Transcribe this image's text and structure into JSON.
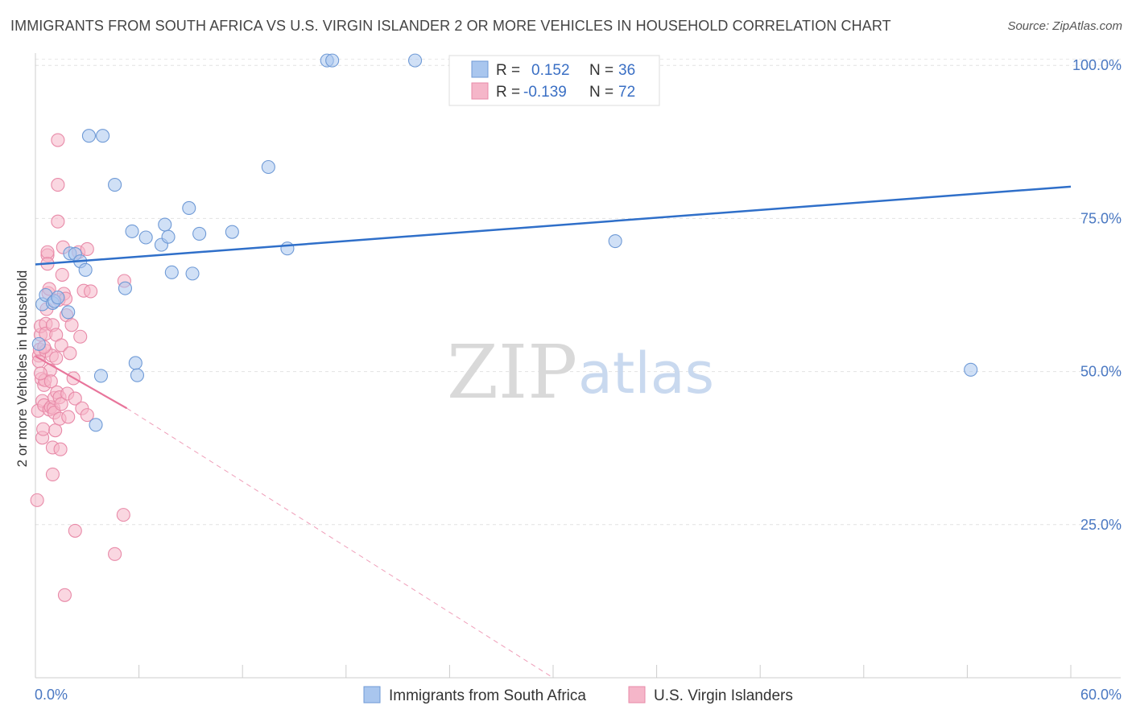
{
  "title": "IMMIGRANTS FROM SOUTH AFRICA VS U.S. VIRGIN ISLANDER 2 OR MORE VEHICLES IN HOUSEHOLD CORRELATION CHART",
  "source": "Source: ZipAtlas.com",
  "watermark": {
    "zip": "ZIP",
    "atlas": "atlas"
  },
  "legend_box": {
    "rows": [
      {
        "r_label": "R =",
        "r_value": "0.152",
        "n_label": "N =",
        "n_value": "36"
      },
      {
        "r_label": "R =",
        "r_value": "-0.139",
        "n_label": "N =",
        "n_value": "72"
      }
    ]
  },
  "chart_data": {
    "type": "scatter",
    "title": "IMMIGRANTS FROM SOUTH AFRICA VS U.S. VIRGIN ISLANDER 2 OR MORE VEHICLES IN HOUSEHOLD CORRELATION CHART",
    "xlabel": "",
    "ylabel": "2 or more Vehicles in Household",
    "xlim": [
      0,
      60
    ],
    "ylim": [
      0,
      102
    ],
    "x_tick_labels": {
      "left": "0.0%",
      "right": "60.0%"
    },
    "y_ticks": [
      {
        "value": 25,
        "label": "25.0%"
      },
      {
        "value": 50,
        "label": "50.0%"
      },
      {
        "value": 75,
        "label": "75.0%"
      },
      {
        "value": 100,
        "label": "100.0%"
      }
    ],
    "colors": {
      "blue": "#a9c6ee",
      "blue_stroke": "#6f9ad6",
      "blue_line": "#2f6fc9",
      "pink": "#f5b6c9",
      "pink_stroke": "#e88aa8",
      "pink_line": "#e8759b"
    },
    "series": [
      {
        "name": "Immigrants from South Africa",
        "color": "blue",
        "R": 0.152,
        "N": 36,
        "trend": {
          "x0": 0,
          "y0": 67.5,
          "x1": 60,
          "y1": 80.2,
          "dashed_to": null
        },
        "points": [
          [
            0.2,
            54.5
          ],
          [
            0.4,
            61.0
          ],
          [
            0.6,
            62.5
          ],
          [
            1.0,
            61.2
          ],
          [
            1.1,
            61.5
          ],
          [
            1.3,
            62.1
          ],
          [
            1.9,
            59.7
          ],
          [
            2.0,
            69.3
          ],
          [
            2.3,
            69.2
          ],
          [
            2.6,
            68.0
          ],
          [
            2.9,
            66.6
          ],
          [
            3.1,
            88.5
          ],
          [
            3.9,
            88.5
          ],
          [
            3.8,
            49.3
          ],
          [
            3.5,
            41.3
          ],
          [
            4.6,
            80.5
          ],
          [
            5.6,
            72.9
          ],
          [
            5.2,
            63.6
          ],
          [
            5.8,
            51.4
          ],
          [
            5.9,
            49.4
          ],
          [
            6.4,
            71.9
          ],
          [
            7.3,
            70.7
          ],
          [
            7.5,
            74.0
          ],
          [
            7.7,
            72.0
          ],
          [
            7.9,
            66.2
          ],
          [
            8.9,
            76.7
          ],
          [
            9.1,
            66.0
          ],
          [
            9.5,
            72.5
          ],
          [
            11.4,
            72.8
          ],
          [
            13.5,
            83.4
          ],
          [
            14.6,
            70.1
          ],
          [
            16.9,
            100.8
          ],
          [
            17.2,
            100.8
          ],
          [
            22.0,
            100.8
          ],
          [
            33.6,
            71.3
          ],
          [
            54.2,
            50.3
          ]
        ]
      },
      {
        "name": "U.S. Virgin Islanders",
        "color": "pink",
        "R": -0.139,
        "N": 72,
        "trend": {
          "x0": 0,
          "y0": 52.5,
          "x1": 5.3,
          "y1": 44.0,
          "dashed_to": {
            "x": 30,
            "y": 0
          }
        },
        "points": [
          [
            0.1,
            29.0
          ],
          [
            0.15,
            43.6
          ],
          [
            0.2,
            52.6
          ],
          [
            0.2,
            51.7
          ],
          [
            0.25,
            53.6
          ],
          [
            0.3,
            56.0
          ],
          [
            0.3,
            57.4
          ],
          [
            0.35,
            48.8
          ],
          [
            0.4,
            45.2
          ],
          [
            0.4,
            39.2
          ],
          [
            0.45,
            40.6
          ],
          [
            0.5,
            44.5
          ],
          [
            0.5,
            47.8
          ],
          [
            0.55,
            48.6
          ],
          [
            0.6,
            53.4
          ],
          [
            0.6,
            57.8
          ],
          [
            0.6,
            56.2
          ],
          [
            0.65,
            60.2
          ],
          [
            0.7,
            69.0
          ],
          [
            0.7,
            69.5
          ],
          [
            0.7,
            67.6
          ],
          [
            0.75,
            62.8
          ],
          [
            0.8,
            63.5
          ],
          [
            0.8,
            43.8
          ],
          [
            0.85,
            50.2
          ],
          [
            0.9,
            48.4
          ],
          [
            0.9,
            44.2
          ],
          [
            0.95,
            52.6
          ],
          [
            1.0,
            57.6
          ],
          [
            1.0,
            33.2
          ],
          [
            1.0,
            37.6
          ],
          [
            1.05,
            44.0
          ],
          [
            1.1,
            43.3
          ],
          [
            1.1,
            45.7
          ],
          [
            1.15,
            40.4
          ],
          [
            1.2,
            56.0
          ],
          [
            1.2,
            52.2
          ],
          [
            1.25,
            46.6
          ],
          [
            1.3,
            74.5
          ],
          [
            1.3,
            80.5
          ],
          [
            1.3,
            87.8
          ],
          [
            1.35,
            61.7
          ],
          [
            1.4,
            42.3
          ],
          [
            1.4,
            45.8
          ],
          [
            1.45,
            37.3
          ],
          [
            1.5,
            44.7
          ],
          [
            1.5,
            54.3
          ],
          [
            1.55,
            65.8
          ],
          [
            1.6,
            70.3
          ],
          [
            1.65,
            62.7
          ],
          [
            1.7,
            13.5
          ],
          [
            1.75,
            61.9
          ],
          [
            1.8,
            59.2
          ],
          [
            1.85,
            46.4
          ],
          [
            1.9,
            42.6
          ],
          [
            2.0,
            53.0
          ],
          [
            2.1,
            57.6
          ],
          [
            2.2,
            48.9
          ],
          [
            2.3,
            45.6
          ],
          [
            2.3,
            24.0
          ],
          [
            2.5,
            69.5
          ],
          [
            2.6,
            55.7
          ],
          [
            2.7,
            44.0
          ],
          [
            2.8,
            63.2
          ],
          [
            3.0,
            70.0
          ],
          [
            3.0,
            42.9
          ],
          [
            3.2,
            63.1
          ],
          [
            4.6,
            20.2
          ],
          [
            5.1,
            26.6
          ],
          [
            5.15,
            64.8
          ],
          [
            0.3,
            49.7
          ],
          [
            0.5,
            54.0
          ]
        ]
      }
    ]
  }
}
